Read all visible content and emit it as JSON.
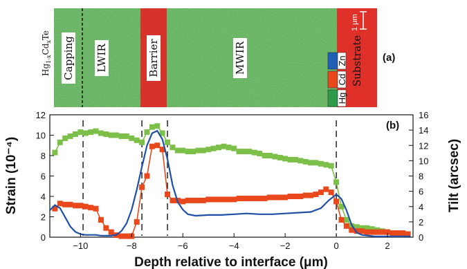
{
  "panel_a": {
    "label": "(a)",
    "compound": "Hg1-xCdxTe",
    "scale_bar": "1 μm",
    "layers": [
      {
        "name": "Capping",
        "label_box": true
      },
      {
        "name": "LWIR",
        "label_box": true
      },
      {
        "name": "Barrier",
        "label_box": true
      },
      {
        "name": "MWIR",
        "label_box": true
      },
      {
        "name": "Substrate",
        "label_box": false
      }
    ],
    "legend": [
      {
        "element": "Zn",
        "color": "#1f5fb5"
      },
      {
        "element": "Cd",
        "color": "#e8481c"
      },
      {
        "element": "Hg",
        "color": "#2f9a4a"
      }
    ]
  },
  "chart_data": {
    "type": "line",
    "panel_label": "(b)",
    "xlabel": "Depth relative to interface (μm)",
    "ylabel": "Strain (10⁻⁴)",
    "y2label": "Tilt (arcsec)",
    "xlim": [
      -11.2,
      3.0
    ],
    "ylim": [
      0,
      12
    ],
    "y2lim": [
      0,
      16
    ],
    "x_ticks": [
      -10,
      -8,
      -6,
      -4,
      -2,
      0,
      2
    ],
    "y_ticks": [
      0,
      2,
      4,
      6,
      8,
      10,
      12
    ],
    "y2_ticks": [
      0,
      2,
      4,
      6,
      8,
      10,
      12,
      14,
      16
    ],
    "dashed_lines_x": [
      -9.9,
      -7.6,
      -6.6,
      0
    ],
    "series": [
      {
        "color": "#7cc04a",
        "marker": "square",
        "axis": "left",
        "x": [
          -11.0,
          -10.8,
          -10.6,
          -10.4,
          -10.2,
          -10.0,
          -9.8,
          -9.6,
          -9.4,
          -9.2,
          -9.0,
          -8.8,
          -8.6,
          -8.4,
          -8.2,
          -8.0,
          -7.8,
          -7.6,
          -7.4,
          -7.2,
          -7.0,
          -6.8,
          -6.6,
          -6.4,
          -6.2,
          -6.0,
          -5.8,
          -5.6,
          -5.4,
          -5.2,
          -5.0,
          -4.8,
          -4.6,
          -4.4,
          -4.2,
          -4.0,
          -3.8,
          -3.6,
          -3.4,
          -3.2,
          -3.0,
          -2.8,
          -2.6,
          -2.4,
          -2.2,
          -2.0,
          -1.8,
          -1.6,
          -1.4,
          -1.2,
          -1.0,
          -0.8,
          -0.6,
          -0.4,
          -0.2,
          0.0,
          0.2,
          0.4,
          0.6,
          0.8,
          1.0,
          1.2,
          1.4,
          1.6,
          1.8,
          2.0,
          2.2,
          2.4,
          2.6,
          2.8
        ],
        "y": [
          8.3,
          9.3,
          9.7,
          9.9,
          10.1,
          10.3,
          10.2,
          10.3,
          10.4,
          10.2,
          10.1,
          10.0,
          10.0,
          9.9,
          9.9,
          9.7,
          9.5,
          9.3,
          10.3,
          10.8,
          10.9,
          10.2,
          9.3,
          8.8,
          8.5,
          8.5,
          8.4,
          8.4,
          8.5,
          8.5,
          8.6,
          8.7,
          8.8,
          8.9,
          8.8,
          8.7,
          8.4,
          8.4,
          8.4,
          8.3,
          8.2,
          8.0,
          8.0,
          7.9,
          7.8,
          7.7,
          7.6,
          7.6,
          7.5,
          7.4,
          7.3,
          7.3,
          7.2,
          7.1,
          7.0,
          5.4,
          3.0,
          1.7,
          1.1,
          1.0,
          0.9,
          0.9,
          0.8,
          0.7,
          0.6,
          0.5,
          0.4,
          0.4,
          0.3,
          0.3
        ]
      },
      {
        "color": "#e8481c",
        "marker": "square",
        "axis": "left",
        "x": [
          -11.0,
          -10.8,
          -10.6,
          -10.4,
          -10.2,
          -10.0,
          -9.8,
          -9.6,
          -9.4,
          -9.2,
          -9.0,
          -8.8,
          -8.6,
          -8.4,
          -8.2,
          -8.0,
          -7.8,
          -7.6,
          -7.4,
          -7.2,
          -7.0,
          -6.8,
          -6.6,
          -6.4,
          -6.2,
          -6.0,
          -5.8,
          -5.6,
          -5.4,
          -5.2,
          -5.0,
          -4.8,
          -4.6,
          -4.4,
          -4.2,
          -4.0,
          -3.8,
          -3.6,
          -3.4,
          -3.2,
          -3.0,
          -2.8,
          -2.6,
          -2.4,
          -2.2,
          -2.0,
          -1.8,
          -1.6,
          -1.4,
          -1.2,
          -1.0,
          -0.8,
          -0.6,
          -0.4,
          -0.2,
          0.0,
          0.2,
          0.4,
          0.6,
          0.8,
          1.0,
          1.2,
          1.4,
          1.6,
          1.8,
          2.0,
          2.2,
          2.4,
          2.6,
          2.8
        ],
        "y": [
          2.8,
          3.3,
          3.2,
          3.2,
          3.1,
          3.1,
          3.0,
          2.9,
          2.8,
          1.7,
          0.9,
          0.5,
          0.2,
          0.1,
          0.1,
          0.1,
          1.5,
          4.9,
          6.0,
          8.9,
          9.0,
          8.6,
          4.2,
          3.6,
          3.6,
          3.5,
          3.6,
          3.6,
          3.6,
          3.6,
          3.7,
          3.7,
          3.7,
          3.7,
          3.7,
          3.7,
          3.8,
          3.8,
          3.8,
          3.8,
          3.8,
          3.8,
          3.9,
          3.9,
          3.9,
          3.9,
          4.0,
          4.0,
          4.0,
          4.1,
          4.1,
          4.2,
          4.4,
          4.7,
          4.4,
          3.5,
          1.7,
          1.1,
          0.7,
          0.6,
          0.6,
          0.5,
          0.5,
          0.5,
          0.5,
          0.5,
          0.4,
          0.4,
          0.4,
          0.3
        ]
      },
      {
        "color": "#1f4fa5",
        "marker": "none",
        "axis": "right",
        "x": [
          -11.2,
          -11.0,
          -10.8,
          -10.6,
          -10.4,
          -10.2,
          -10.0,
          -9.8,
          -9.6,
          -9.4,
          -9.2,
          -9.0,
          -8.8,
          -8.6,
          -8.4,
          -8.2,
          -8.0,
          -7.8,
          -7.6,
          -7.4,
          -7.2,
          -7.0,
          -6.8,
          -6.6,
          -6.4,
          -6.2,
          -6.0,
          -5.8,
          -5.5,
          -5.0,
          -4.5,
          -4.0,
          -3.5,
          -3.0,
          -2.5,
          -2.0,
          -1.5,
          -1.0,
          -0.6,
          -0.3,
          0.0,
          0.2,
          0.4,
          0.6,
          0.8,
          1.0,
          1.5,
          2.0,
          2.5,
          2.9
        ],
        "y": [
          3.5,
          4.2,
          3.8,
          2.6,
          1.4,
          0.7,
          0.4,
          0.3,
          0.3,
          0.3,
          0.2,
          0.2,
          0.2,
          0.3,
          0.8,
          1.8,
          3.6,
          6.2,
          9.2,
          12.0,
          13.6,
          13.9,
          12.8,
          10.2,
          6.8,
          4.6,
          3.6,
          3.0,
          2.8,
          2.9,
          2.9,
          3.0,
          3.1,
          3.0,
          3.0,
          3.1,
          3.2,
          3.3,
          3.8,
          4.8,
          5.6,
          5.0,
          3.5,
          1.6,
          0.6,
          0.3,
          0.1,
          0.1,
          0.1,
          0.1
        ]
      }
    ]
  }
}
